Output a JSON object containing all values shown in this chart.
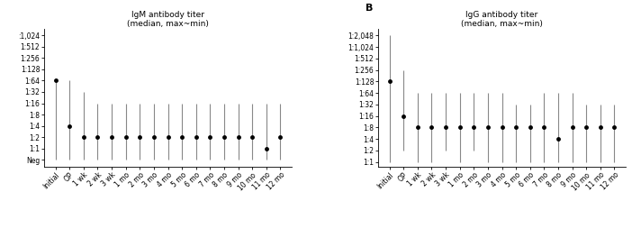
{
  "left": {
    "title": "IgM antibody titer\n(median, max~min)",
    "x_labels": [
      "Initial",
      "OP",
      "1 wk",
      "2 wk",
      "3 wk",
      "1 mo",
      "2 mo",
      "3 mo",
      "4 mo",
      "5 mo",
      "6 mo",
      "7 mo",
      "8 mo",
      "9 mo",
      "10 mo",
      "11 mo",
      "12 mo"
    ],
    "medians": [
      64,
      4,
      2,
      2,
      2,
      2,
      2,
      2,
      2,
      2,
      2,
      2,
      2,
      2,
      2,
      1,
      2
    ],
    "maxvals": [
      64,
      64,
      32,
      16,
      16,
      16,
      16,
      16,
      16,
      16,
      16,
      16,
      16,
      16,
      16,
      16,
      16
    ],
    "minvals": [
      0,
      0,
      0,
      0,
      0,
      0,
      0,
      0,
      0,
      0,
      0,
      0,
      0,
      0,
      0,
      0,
      0
    ],
    "ytick_vals": [
      0,
      1,
      2,
      4,
      8,
      16,
      32,
      64,
      128,
      256,
      512,
      1024
    ],
    "ytick_labels": [
      "Neg",
      "1:1",
      "1:2",
      "1:4",
      "1:8",
      "1:16",
      "1:32",
      "1:64",
      "1:128",
      "1:256",
      "1:512",
      ":1,024"
    ],
    "panel_label": ""
  },
  "right": {
    "title": "IgG antibody titer\n(median, max~min)",
    "x_labels": [
      "Initial",
      "OP",
      "1 wk",
      "2 wk",
      "3 wk",
      "1 mo",
      "2 mo",
      "3 mo",
      "4 mo",
      "5 mo",
      "6 mo",
      "7 mo",
      "8 mo",
      "9 mo",
      "10 mo",
      "11 mo",
      "12 mo"
    ],
    "medians": [
      128,
      16,
      8,
      8,
      8,
      8,
      8,
      8,
      8,
      8,
      8,
      8,
      4,
      8,
      8,
      8,
      8
    ],
    "maxvals": [
      2048,
      256,
      64,
      64,
      64,
      64,
      64,
      64,
      64,
      32,
      32,
      64,
      64,
      64,
      32,
      32,
      32
    ],
    "minvals": [
      1,
      2,
      1,
      1,
      2,
      1,
      2,
      1,
      1,
      1,
      1,
      1,
      1,
      1,
      1,
      1,
      1
    ],
    "ytick_vals": [
      1,
      2,
      4,
      8,
      16,
      32,
      64,
      128,
      256,
      512,
      1024,
      2048
    ],
    "ytick_labels": [
      "1:1",
      "1:2",
      "1:4",
      "1:8",
      "1:16",
      "1:32",
      "1:64",
      "1:128",
      "1:256",
      "1:512",
      "1:1,024",
      "1:2,048"
    ],
    "panel_label": "B"
  },
  "dot_color": "#000000",
  "line_color": "#888888",
  "dot_size": 3.5,
  "line_width": 0.8,
  "fontsize_tick": 5.5,
  "fontsize_title": 6.5
}
